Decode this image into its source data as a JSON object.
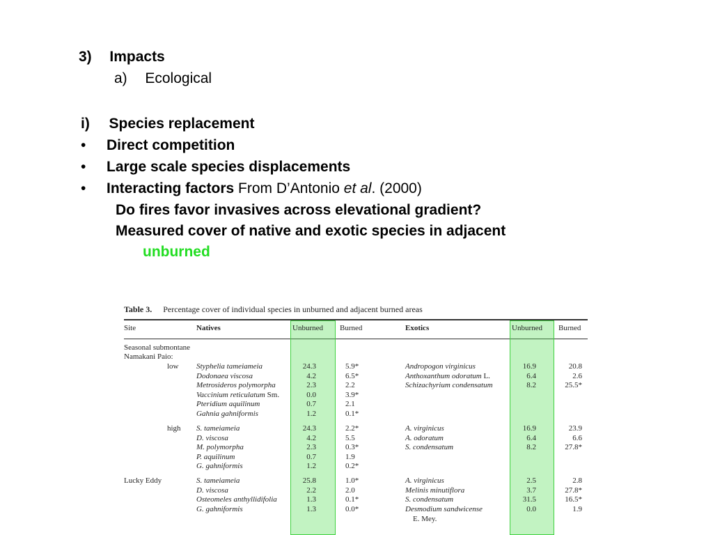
{
  "slide": {
    "section_num": "3)",
    "section_title": "Impacts",
    "sub_num": "a)",
    "sub_title": "Ecological",
    "item_num": "i)",
    "item_title": "Species replacement",
    "bullets": [
      {
        "marker": "•",
        "text": "Direct competition"
      },
      {
        "marker": "•",
        "text": "Large scale species displacements"
      }
    ],
    "bullet3": {
      "marker": "•",
      "bold": "Interacting factors",
      "pre": " From D’Antonio ",
      "italic": "et al",
      "post": ". (2000)"
    },
    "question": "Do fires favor invasives across elevational gradient?",
    "measured": "Measured cover of native and exotic species in adjacent",
    "unburned_word": "unburned",
    "highlight_color": "#22dd22"
  },
  "table": {
    "caption_label": "Table 3.",
    "caption_text": "Percentage cover of individual species in unburned and adjacent burned areas",
    "headers": {
      "site": "Site",
      "natives": "Natives",
      "unburned": "Unburned",
      "burned": "Burned",
      "exotics": "Exotics",
      "unburned2": "Unburned",
      "burned2": "Burned"
    },
    "site_group_1": "Seasonal submontane",
    "site_group_2": "Namakani Paio:",
    "low": {
      "label": "low",
      "natives": [
        {
          "name": "Styphelia tameiameia",
          "extra": "",
          "unburned": "24.3",
          "burned": "5.9*"
        },
        {
          "name": "Dodonaea viscosa",
          "extra": "",
          "unburned": "4.2",
          "burned": "6.5*"
        },
        {
          "name": "Metrosideros polymorpha",
          "extra": "",
          "unburned": "2.3",
          "burned": "2.2"
        },
        {
          "name": "Vaccinium reticulatum",
          "extra": " Sm.",
          "unburned": "0.0",
          "burned": "3.9*"
        },
        {
          "name": "Pteridium aquilinum",
          "extra": "",
          "unburned": "0.7",
          "burned": "2.1"
        },
        {
          "name": "Gahnia gahniformis",
          "extra": "",
          "unburned": "1.2",
          "burned": "0.1*"
        }
      ],
      "exotics": [
        {
          "name": "Andropogon virginicus",
          "extra": "",
          "unburned": "16.9",
          "burned": "20.8"
        },
        {
          "name": "Anthoxanthum odoratum",
          "extra": " L.",
          "unburned": "6.4",
          "burned": "2.6"
        },
        {
          "name": "Schizachyrium condensatum",
          "extra": "",
          "unburned": "8.2",
          "burned": "25.5*"
        }
      ]
    },
    "high": {
      "label": "high",
      "natives": [
        {
          "name": "S. tameiameia",
          "extra": "",
          "unburned": "24.3",
          "burned": "2.2*"
        },
        {
          "name": "D. viscosa",
          "extra": "",
          "unburned": "4.2",
          "burned": "5.5"
        },
        {
          "name": "M. polymorpha",
          "extra": "",
          "unburned": "2.3",
          "burned": "0.3*"
        },
        {
          "name": "P. aquilinum",
          "extra": "",
          "unburned": "0.7",
          "burned": "1.9"
        },
        {
          "name": "G. gahniformis",
          "extra": "",
          "unburned": "1.2",
          "burned": "0.2*"
        }
      ],
      "exotics": [
        {
          "name": "A. virginicus",
          "extra": "",
          "unburned": "16.9",
          "burned": "23.9"
        },
        {
          "name": "A. odoratum",
          "extra": "",
          "unburned": "6.4",
          "burned": "6.6"
        },
        {
          "name": "S. condensatum",
          "extra": "",
          "unburned": "8.2",
          "burned": "27.8*"
        }
      ]
    },
    "lucky": {
      "label": "Lucky Eddy",
      "natives": [
        {
          "name": "S. tameiameia",
          "extra": "",
          "unburned": "25.8",
          "burned": "1.0*"
        },
        {
          "name": "D. viscosa",
          "extra": "",
          "unburned": "2.2",
          "burned": "2.0"
        },
        {
          "name": "Osteomeles anthyllidifolia",
          "extra": "",
          "unburned": "1.3",
          "burned": "0.1*"
        },
        {
          "name": "G. gahniformis",
          "extra": "",
          "unburned": "1.3",
          "burned": "0.0*"
        }
      ],
      "exotics": [
        {
          "name": "A. virginicus",
          "extra": "",
          "unburned": "2.5",
          "burned": "2.8"
        },
        {
          "name": "Melinis minutiflora",
          "extra": "",
          "unburned": "3.7",
          "burned": "27.8*"
        },
        {
          "name": "S. condensatum",
          "extra": "",
          "unburned": "31.5",
          "burned": "16.5*"
        },
        {
          "name": "Desmodium sandwicense",
          "extra": "",
          "unburned": "0.0",
          "burned": "1.9"
        }
      ],
      "exotic_cont": "E. Mey."
    }
  }
}
